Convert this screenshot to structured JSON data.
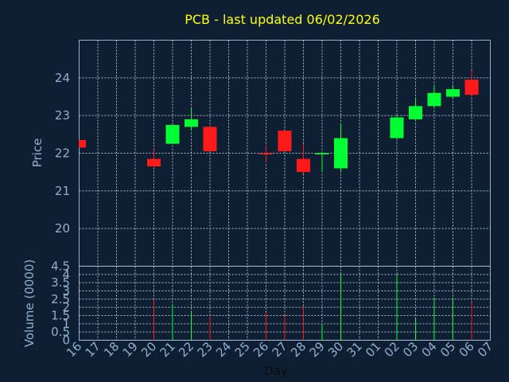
{
  "chart_data": {
    "type": "candlestick",
    "title": "PCB - last updated 06/02/2026",
    "xlabel": "Day",
    "x_ticks": [
      "16",
      "17",
      "18",
      "19",
      "20",
      "21",
      "22",
      "23",
      "24",
      "25",
      "26",
      "27",
      "28",
      "29",
      "30",
      "31",
      "01",
      "02",
      "03",
      "04",
      "05",
      "06",
      "07"
    ],
    "price_panel": {
      "ylabel": "Price",
      "ylim": [
        19.0,
        25.0
      ],
      "yticks": [
        "20",
        "21",
        "22",
        "23",
        "24"
      ],
      "grid": true
    },
    "volume_panel": {
      "ylabel": "Volume (0000)",
      "ylim": [
        0,
        4.5
      ],
      "yticks": [
        "0",
        "0.5",
        "1",
        "1.5",
        "2",
        "2.5",
        "3",
        "3.5",
        "4",
        "4.5"
      ],
      "grid": true
    },
    "candles": [
      {
        "day": "16",
        "open": 22.35,
        "high": 22.35,
        "low": 22.15,
        "close": 22.15,
        "volume": 0
      },
      {
        "day": "20",
        "open": 21.85,
        "high": 22.1,
        "low": 21.65,
        "close": 21.65,
        "volume": 2.5
      },
      {
        "day": "21",
        "open": 22.25,
        "high": 22.75,
        "low": 22.25,
        "close": 22.75,
        "volume": 2.2
      },
      {
        "day": "22",
        "open": 22.7,
        "high": 23.2,
        "low": 22.6,
        "close": 22.9,
        "volume": 1.8
      },
      {
        "day": "23",
        "open": 22.7,
        "high": 22.7,
        "low": 22.05,
        "close": 22.05,
        "volume": 1.4
      },
      {
        "day": "26",
        "open": 22.0,
        "high": 22.2,
        "low": 21.75,
        "close": 21.98,
        "volume": 1.7
      },
      {
        "day": "27",
        "open": 22.6,
        "high": 22.6,
        "low": 22.05,
        "close": 22.05,
        "volume": 1.5
      },
      {
        "day": "28",
        "open": 21.85,
        "high": 22.25,
        "low": 21.45,
        "close": 21.5,
        "volume": 2.1
      },
      {
        "day": "29",
        "open": 21.98,
        "high": 22.05,
        "low": 21.5,
        "close": 22.0,
        "volume": 1.0
      },
      {
        "day": "30",
        "open": 21.6,
        "high": 22.8,
        "low": 21.5,
        "close": 22.4,
        "volume": 4.0
      },
      {
        "day": "02",
        "open": 22.4,
        "high": 23.0,
        "low": 22.4,
        "close": 22.95,
        "volume": 4.0
      },
      {
        "day": "03",
        "open": 22.9,
        "high": 23.45,
        "low": 22.85,
        "close": 23.25,
        "volume": 1.3
      },
      {
        "day": "04",
        "open": 23.25,
        "high": 23.8,
        "low": 23.2,
        "close": 23.6,
        "volume": 2.6
      },
      {
        "day": "05",
        "open": 23.5,
        "high": 23.8,
        "low": 23.45,
        "close": 23.7,
        "volume": 2.6
      },
      {
        "day": "06",
        "open": 23.95,
        "high": 24.2,
        "low": 23.55,
        "close": 23.55,
        "volume": 2.3
      }
    ],
    "colors": {
      "up": "#00ff33",
      "down": "#ff1a1a",
      "plot_background": "#0f1f33",
      "axis": "#8fb0d0",
      "grid": "#c8d4e0",
      "title": "#ffff00"
    }
  }
}
